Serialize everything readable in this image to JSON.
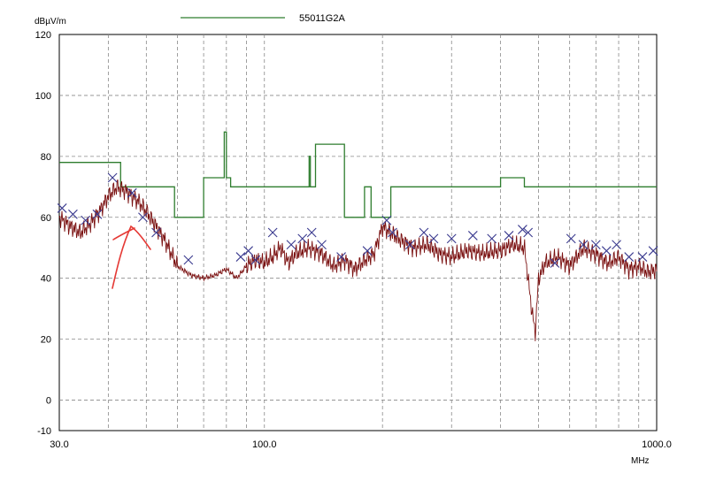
{
  "chart_data": {
    "type": "line",
    "title": "",
    "ylabel": "dBµV/m",
    "xlabel": "MHz",
    "x_scale": "log",
    "xlim": [
      30,
      1000
    ],
    "ylim": [
      -10,
      120
    ],
    "grid": true,
    "legend": "top-center",
    "colors": {
      "limit": "#2e7d2e",
      "trace": "#7a1010",
      "markers": "#3b3b8f",
      "annotation": "#e53935"
    },
    "y_ticks": [
      "120",
      "100",
      "80",
      "60",
      "40",
      "20",
      "0",
      "-10"
    ],
    "y_tick_values": [
      120,
      100,
      80,
      60,
      40,
      20,
      0,
      -10
    ],
    "x_ticks": [
      "30.0",
      "100.0",
      "1000.0"
    ],
    "x_tick_values": [
      30,
      100,
      1000
    ],
    "series": [
      {
        "name": "55011G2A",
        "kind": "limit",
        "x": [
          30,
          43,
          43,
          59,
          59,
          70,
          70,
          79,
          79,
          80,
          80,
          82,
          82,
          130,
          130,
          131,
          131,
          135,
          135,
          160,
          160,
          180,
          180,
          187,
          187,
          188,
          188,
          190,
          190,
          210,
          210,
          400,
          400,
          460,
          460,
          1000
        ],
        "values": [
          78,
          78,
          70,
          70,
          60,
          60,
          73,
          73,
          88,
          88,
          73,
          73,
          70,
          70,
          80,
          80,
          70,
          70,
          84,
          84,
          60,
          60,
          70,
          70,
          60,
          60,
          60,
          60,
          60,
          60,
          70,
          70,
          73,
          73,
          70,
          70
        ]
      },
      {
        "name": "",
        "kind": "trace",
        "x": [
          30,
          32,
          34,
          36,
          38,
          40,
          42,
          44,
          46,
          48,
          50,
          53,
          56,
          60,
          65,
          70,
          75,
          80,
          85,
          90,
          95,
          100,
          105,
          110,
          115,
          120,
          130,
          140,
          150,
          160,
          170,
          180,
          190,
          200,
          220,
          240,
          260,
          280,
          300,
          330,
          360,
          400,
          430,
          460,
          480,
          490,
          500,
          520,
          560,
          600,
          650,
          700,
          750,
          800,
          850,
          900,
          950,
          1000
        ],
        "values": [
          60,
          57,
          55,
          58,
          62,
          67,
          70,
          69,
          67,
          65,
          62,
          57,
          52,
          44,
          41,
          40,
          41,
          43,
          40,
          44,
          46,
          45,
          47,
          50,
          45,
          48,
          50,
          48,
          44,
          46,
          43,
          46,
          48,
          57,
          53,
          50,
          51,
          48,
          47,
          49,
          48,
          49,
          51,
          50,
          30,
          22,
          40,
          45,
          47,
          44,
          50,
          48,
          45,
          47,
          43,
          44,
          42,
          43
        ]
      },
      {
        "name": "",
        "kind": "markers",
        "x": [
          30.5,
          32.5,
          35,
          37.5,
          41,
          46,
          49,
          53,
          64,
          87,
          91,
          95,
          105,
          117,
          125,
          132,
          140,
          157,
          183,
          205,
          212,
          235,
          255,
          270,
          300,
          340,
          380,
          420,
          455,
          470,
          550,
          605,
          650,
          700,
          745,
          790,
          850,
          920,
          980
        ],
        "values": [
          63,
          61,
          59,
          61,
          73,
          68,
          60,
          55,
          46,
          47,
          49,
          46,
          55,
          51,
          53,
          55,
          51,
          47,
          49,
          59,
          55,
          51,
          55,
          53,
          53,
          54,
          53,
          54,
          56,
          55,
          45,
          53,
          51,
          51,
          49,
          51,
          47,
          47,
          49
        ]
      }
    ],
    "annotations": [
      {
        "kind": "hand-drawn-arrow",
        "color": "#e53935"
      }
    ]
  }
}
